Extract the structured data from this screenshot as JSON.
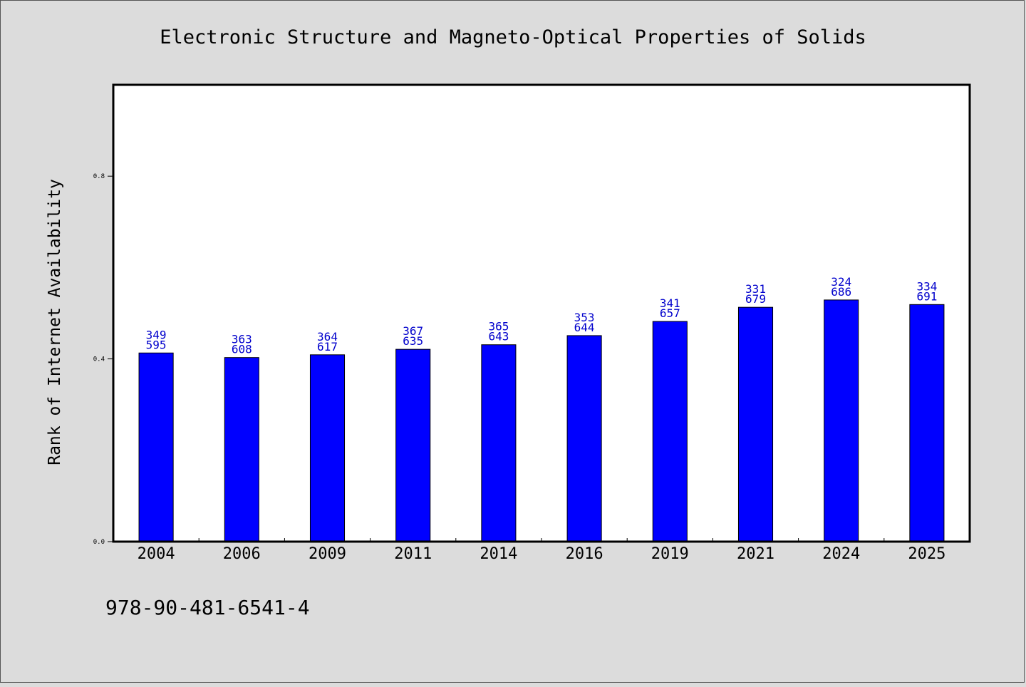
{
  "chart_data": {
    "type": "bar",
    "title": "Electronic Structure and Magneto-Optical Properties of Solids",
    "ylabel": "Rank of Internet Availability",
    "xlabel": "",
    "footnote": "978-90-481-6541-4",
    "categories": [
      "2004",
      "2006",
      "2009",
      "2011",
      "2014",
      "2016",
      "2019",
      "2021",
      "2024",
      "2025"
    ],
    "values": [
      0.413,
      0.403,
      0.409,
      0.421,
      0.431,
      0.451,
      0.482,
      0.513,
      0.529,
      0.519
    ],
    "label_top": [
      "349",
      "363",
      "364",
      "367",
      "365",
      "353",
      "341",
      "331",
      "324",
      "334"
    ],
    "label_bottom": [
      "595",
      "608",
      "617",
      "635",
      "643",
      "644",
      "657",
      "679",
      "686",
      "691"
    ],
    "ylim": [
      0.0,
      1.0
    ],
    "yticks": [
      0.0,
      0.4,
      0.8
    ],
    "ytick_labels": [
      "0.0",
      "0.4",
      "0.8"
    ],
    "grid": false,
    "legend": "none",
    "colors": {
      "bar": "#0000ff",
      "bar_edge": "#000000",
      "label": "#0000cc",
      "background": "#dcdcdc",
      "plot_background": "#ffffff",
      "text": "#000000"
    }
  }
}
